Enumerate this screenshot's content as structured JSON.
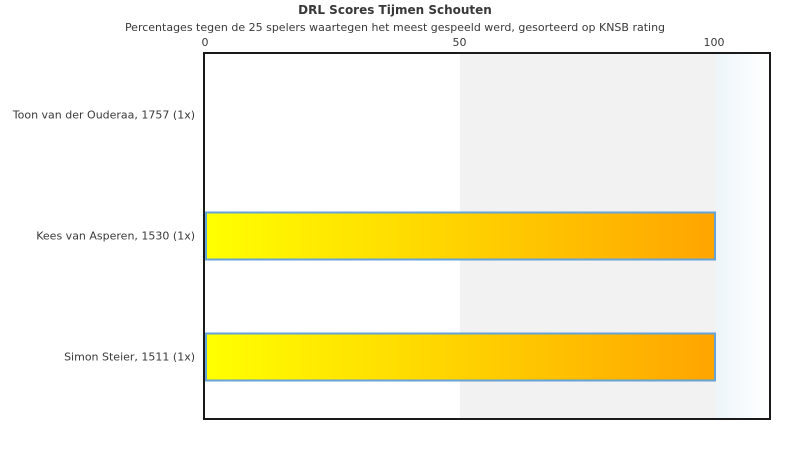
{
  "chart_data": {
    "type": "bar",
    "orientation": "horizontal",
    "title": "DRL Scores Tijmen Schouten",
    "subtitle": "Percentages tegen de 25 spelers waartegen het meest gespeeld werd, gesorteerd op KNSB rating",
    "categories": [
      "Toon van der Ouderaa, 1757 (1x)",
      "Kees van Asperen, 1530 (1x)",
      "Simon Steier, 1511 (1x)"
    ],
    "values": [
      0,
      100,
      100
    ],
    "xlabel": "",
    "ylabel": "",
    "xlim": [
      0,
      110.4
    ],
    "x_ticks": [
      0,
      50,
      100
    ],
    "x_tick_labels": [
      "0",
      "50",
      "100"
    ],
    "grid": false,
    "legend": false,
    "shaded_band": [
      50,
      100
    ],
    "colors": {
      "bar_gradient_start": "#ffff00",
      "bar_gradient_end": "#ffa500",
      "bar_border": "#66a3d6",
      "band_fill": "#f2f2f2",
      "right_region_start": "#edf5fa",
      "right_region_end": "#ffffff",
      "plot_border": "#1a1a1a",
      "text": "#3a3a3a"
    }
  }
}
